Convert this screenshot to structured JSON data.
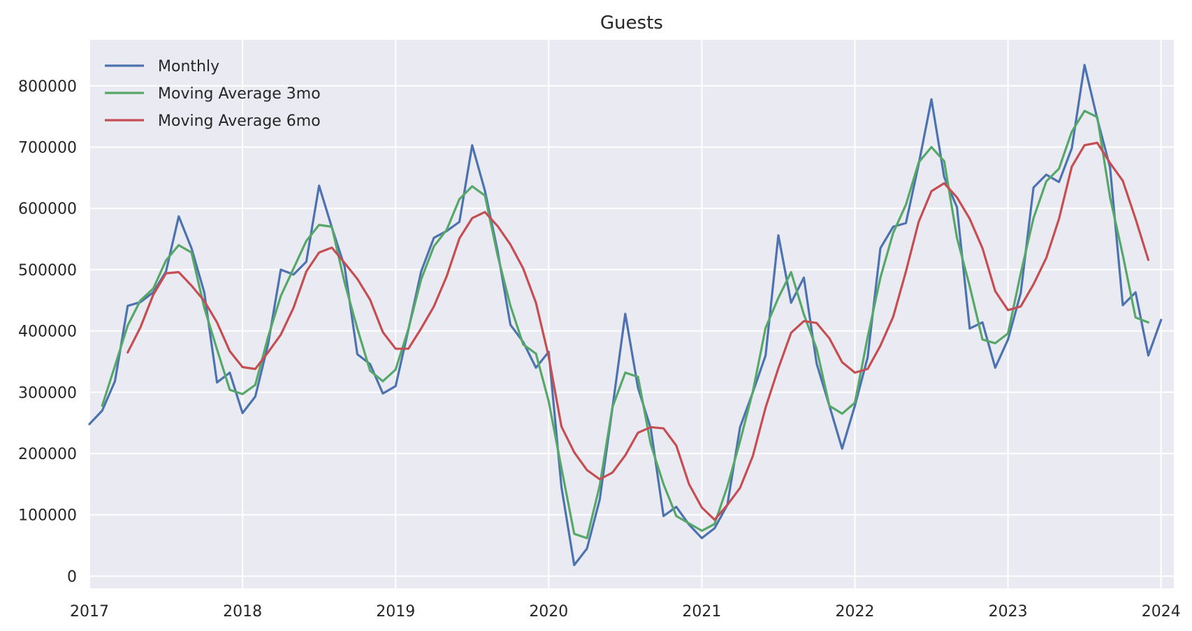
{
  "chart_data": {
    "type": "line",
    "title": "Guests",
    "xlabel": "",
    "ylabel": "",
    "x_start": "2017-01",
    "x_end": "2024-02",
    "xlim": [
      "2017-01",
      "2024-02"
    ],
    "ylim": [
      -20000,
      875000
    ],
    "x_tick_labels": [
      "2017",
      "2018",
      "2019",
      "2020",
      "2021",
      "2022",
      "2023",
      "2024"
    ],
    "y_ticks": [
      0,
      100000,
      200000,
      300000,
      400000,
      500000,
      600000,
      700000,
      800000
    ],
    "y_tick_labels": [
      "0",
      "100000",
      "200000",
      "300000",
      "400000",
      "500000",
      "600000",
      "700000",
      "800000"
    ],
    "grid": true,
    "legend_position": "top-left",
    "series": [
      {
        "name": "Monthly",
        "color": "#4c72b0",
        "start": "2017-01",
        "values": [
          248000,
          270000,
          318000,
          441000,
          447000,
          463000,
          497000,
          587000,
          535000,
          463000,
          316000,
          332000,
          266000,
          293000,
          378000,
          500000,
          492000,
          513000,
          637000,
          569000,
          505000,
          362000,
          346000,
          298000,
          310000,
          402000,
          497000,
          552000,
          563000,
          578000,
          703000,
          629000,
          530000,
          410000,
          382000,
          340000,
          366000,
          145000,
          18000,
          45000,
          125000,
          275000,
          428000,
          307000,
          241000,
          98000,
          113000,
          84000,
          62000,
          78000,
          116000,
          243000,
          300000,
          360000,
          556000,
          446000,
          487000,
          347000,
          278000,
          208000,
          278000,
          357000,
          535000,
          570000,
          576000,
          672000,
          778000,
          651000,
          602000,
          404000,
          414000,
          340000,
          386000,
          462000,
          634000,
          655000,
          643000,
          698000,
          834000,
          746000,
          667000,
          442000,
          463000,
          360000,
          418000
        ]
      },
      {
        "name": "Moving Average 3mo",
        "color": "#55a868",
        "start": "2017-02",
        "values": [
          278000,
          343000,
          409000,
          450000,
          469000,
          515000,
          540000,
          528000,
          438000,
          370000,
          304000,
          297000,
          312000,
          390000,
          457000,
          502000,
          547000,
          573000,
          570000,
          479000,
          404000,
          335000,
          318000,
          337000,
          403000,
          484000,
          538000,
          565000,
          615000,
          636000,
          621000,
          523000,
          441000,
          378000,
          363000,
          285000,
          176000,
          69000,
          62000,
          148000,
          276000,
          332000,
          325000,
          215000,
          150000,
          98000,
          86000,
          74000,
          85000,
          146000,
          220000,
          301000,
          405000,
          454000,
          496000,
          427000,
          371000,
          278000,
          265000,
          283000,
          390000,
          487000,
          560000,
          606000,
          675000,
          700000,
          677000,
          552000,
          473000,
          386000,
          380000,
          396000,
          494000,
          584000,
          644000,
          665000,
          725000,
          759000,
          749000,
          618000,
          524000,
          422000,
          414000
        ]
      },
      {
        "name": "Moving Average 6mo",
        "color": "#c44e52",
        "start": "2017-04",
        "values": [
          365000,
          406000,
          459000,
          494000,
          496000,
          474000,
          449000,
          414000,
          367000,
          341000,
          338000,
          365000,
          394000,
          438000,
          497000,
          528000,
          536000,
          511000,
          485000,
          451000,
          398000,
          371000,
          371000,
          404000,
          440000,
          489000,
          551000,
          584000,
          594000,
          571000,
          541000,
          502000,
          446000,
          358000,
          244000,
          202000,
          173000,
          158000,
          169000,
          197000,
          234000,
          243000,
          241000,
          213000,
          150000,
          112000,
          92000,
          116000,
          144000,
          196000,
          275000,
          339000,
          397000,
          416000,
          413000,
          388000,
          349000,
          332000,
          338000,
          376000,
          423000,
          497000,
          578000,
          628000,
          641000,
          618000,
          583000,
          535000,
          465000,
          434000,
          440000,
          476000,
          519000,
          583000,
          668000,
          703000,
          707000,
          674000,
          645000,
          583000,
          516000
        ]
      }
    ]
  }
}
